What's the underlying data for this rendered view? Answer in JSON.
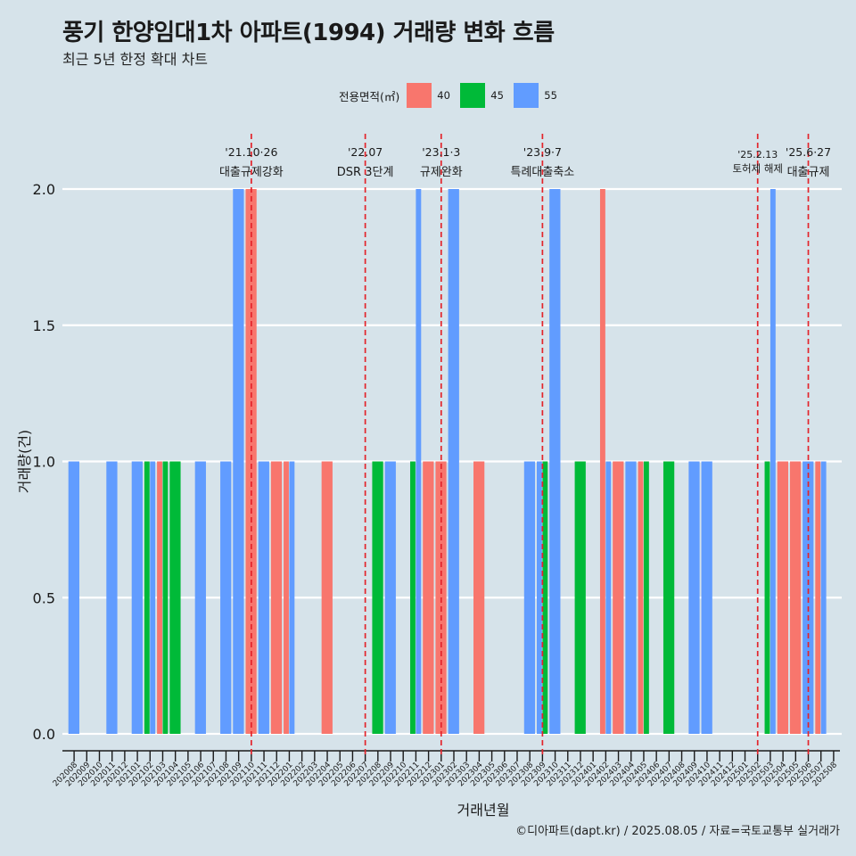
{
  "title": "풍기 한양임대1차 아파트(1994) 거래량 변화 흐름",
  "subtitle": "최근 5년 한정 확대 차트",
  "caption": "©디아파트(dapt.kr) / 2025.08.05 / 자료=국토교통부 실거래가",
  "chart_data": {
    "type": "bar",
    "xlabel": "거래년월",
    "ylabel": "거래량(건)",
    "ylim": [
      0,
      2
    ],
    "yticks": [
      "0.0",
      "0.5",
      "1.0",
      "1.5",
      "2.0"
    ],
    "legend": {
      "title": "전용면적(㎡)",
      "position": "top",
      "items": [
        {
          "name": "40",
          "color": "#f8766d"
        },
        {
          "name": "45",
          "color": "#00ba38"
        },
        {
          "name": "55",
          "color": "#619cff"
        }
      ]
    },
    "categories": [
      "202008",
      "202009",
      "202010",
      "202011",
      "202012",
      "202101",
      "202102",
      "202103",
      "202104",
      "202105",
      "202106",
      "202107",
      "202108",
      "202109",
      "202110",
      "202111",
      "202112",
      "202201",
      "202202",
      "202203",
      "202204",
      "202205",
      "202206",
      "202207",
      "202208",
      "202209",
      "202210",
      "202211",
      "202212",
      "202301",
      "202302",
      "202303",
      "202304",
      "202305",
      "202306",
      "202307",
      "202308",
      "202309",
      "202310",
      "202311",
      "202312",
      "202401",
      "202402",
      "202403",
      "202404",
      "202405",
      "202406",
      "202407",
      "202408",
      "202409",
      "202410",
      "202411",
      "202412",
      "202501",
      "202502",
      "202503",
      "202504",
      "202505",
      "202506",
      "202507",
      "202508"
    ],
    "bars": [
      {
        "x": "202008",
        "area": "55",
        "value": 1
      },
      {
        "x": "202011",
        "area": "55",
        "value": 1
      },
      {
        "x": "202101",
        "area": "55",
        "value": 1
      },
      {
        "x": "202102",
        "area": "45",
        "value": 1
      },
      {
        "x": "202102",
        "area": "55",
        "value": 1
      },
      {
        "x": "202103",
        "area": "40",
        "value": 1
      },
      {
        "x": "202103",
        "area": "45",
        "value": 1
      },
      {
        "x": "202104",
        "area": "45",
        "value": 1
      },
      {
        "x": "202106",
        "area": "55",
        "value": 1
      },
      {
        "x": "202108",
        "area": "55",
        "value": 1
      },
      {
        "x": "202109",
        "area": "55",
        "value": 2
      },
      {
        "x": "202110",
        "area": "40",
        "value": 2
      },
      {
        "x": "202111",
        "area": "55",
        "value": 1
      },
      {
        "x": "202112",
        "area": "40",
        "value": 1
      },
      {
        "x": "202201",
        "area": "40",
        "value": 1
      },
      {
        "x": "202201",
        "area": "55",
        "value": 1
      },
      {
        "x": "202204",
        "area": "40",
        "value": 1
      },
      {
        "x": "202208",
        "area": "45",
        "value": 1
      },
      {
        "x": "202209",
        "area": "55",
        "value": 1
      },
      {
        "x": "202211",
        "area": "45",
        "value": 1
      },
      {
        "x": "202211",
        "area": "55",
        "value": 2
      },
      {
        "x": "202212",
        "area": "40",
        "value": 1
      },
      {
        "x": "202301",
        "area": "40",
        "value": 1
      },
      {
        "x": "202302",
        "area": "55",
        "value": 2
      },
      {
        "x": "202304",
        "area": "40",
        "value": 1
      },
      {
        "x": "202308",
        "area": "55",
        "value": 1
      },
      {
        "x": "202309",
        "area": "55",
        "value": 1
      },
      {
        "x": "202309",
        "area": "45",
        "value": 1
      },
      {
        "x": "202310",
        "area": "55",
        "value": 2
      },
      {
        "x": "202312",
        "area": "45",
        "value": 1
      },
      {
        "x": "202402",
        "area": "40",
        "value": 2
      },
      {
        "x": "202402",
        "area": "55",
        "value": 1
      },
      {
        "x": "202403",
        "area": "40",
        "value": 1
      },
      {
        "x": "202404",
        "area": "55",
        "value": 1
      },
      {
        "x": "202405",
        "area": "40",
        "value": 1
      },
      {
        "x": "202405",
        "area": "45",
        "value": 1
      },
      {
        "x": "202407",
        "area": "45",
        "value": 1
      },
      {
        "x": "202409",
        "area": "55",
        "value": 1
      },
      {
        "x": "202410",
        "area": "55",
        "value": 1
      },
      {
        "x": "202503",
        "area": "45",
        "value": 1
      },
      {
        "x": "202503",
        "area": "55",
        "value": 2
      },
      {
        "x": "202504",
        "area": "40",
        "value": 1
      },
      {
        "x": "202505",
        "area": "40",
        "value": 1
      },
      {
        "x": "202506",
        "area": "55",
        "value": 1
      },
      {
        "x": "202507",
        "area": "40",
        "value": 1
      },
      {
        "x": "202507",
        "area": "55",
        "value": 1
      }
    ],
    "annotations": [
      {
        "x": "202110",
        "date": "'21.10·26",
        "label": "대출규제강화"
      },
      {
        "x": "202207",
        "date": "'22.07",
        "label": "DSR 3단계"
      },
      {
        "x": "202301",
        "date": "'23.1·3",
        "label": "규제완화"
      },
      {
        "x": "202309",
        "date": "'23.9·7",
        "label": "특례대출축소"
      },
      {
        "x": "202502",
        "date": "'25.2.13",
        "label": "토허제 해제"
      },
      {
        "x": "202506",
        "date": "'25.6·27",
        "label": "대출규제"
      }
    ]
  }
}
